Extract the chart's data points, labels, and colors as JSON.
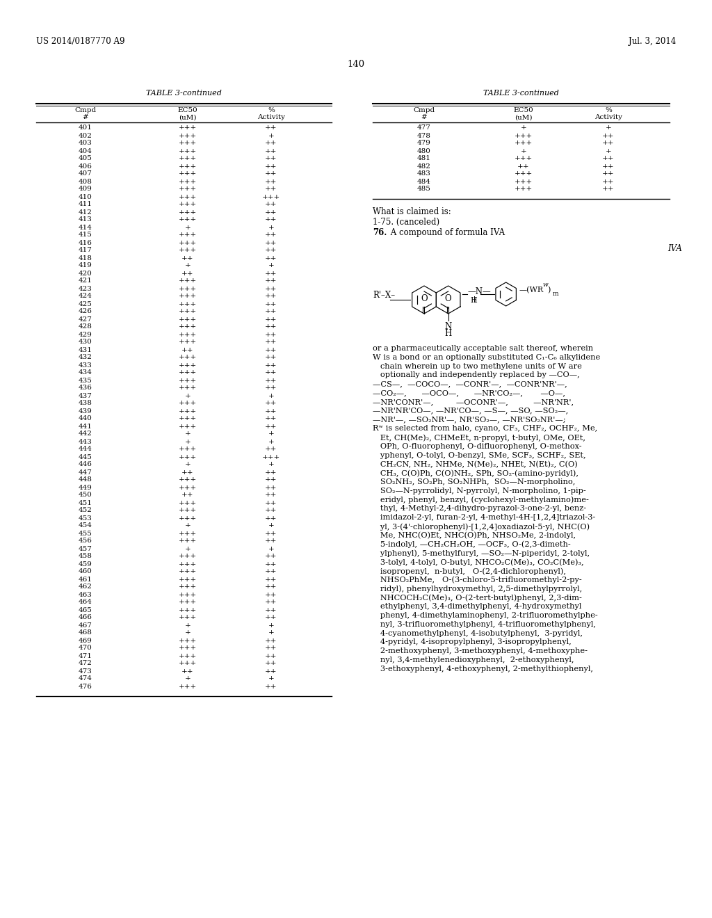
{
  "header_left": "US 2014/0187770 A9",
  "header_right": "Jul. 3, 2014",
  "page_number": "140",
  "table_title": "TABLE 3-continued",
  "left_table_data": [
    [
      "401",
      "+++",
      "++"
    ],
    [
      "402",
      "+++",
      "+"
    ],
    [
      "403",
      "+++",
      "++"
    ],
    [
      "404",
      "+++",
      "++"
    ],
    [
      "405",
      "+++",
      "++"
    ],
    [
      "406",
      "+++",
      "++"
    ],
    [
      "407",
      "+++",
      "++"
    ],
    [
      "408",
      "+++",
      "++"
    ],
    [
      "409",
      "+++",
      "++"
    ],
    [
      "410",
      "+++",
      "+++"
    ],
    [
      "411",
      "+++",
      "++"
    ],
    [
      "412",
      "+++",
      "++"
    ],
    [
      "413",
      "+++",
      "++"
    ],
    [
      "414",
      "+",
      "+"
    ],
    [
      "415",
      "+++",
      "++"
    ],
    [
      "416",
      "+++",
      "++"
    ],
    [
      "417",
      "+++",
      "++"
    ],
    [
      "418",
      "++",
      "++"
    ],
    [
      "419",
      "+",
      "+"
    ],
    [
      "420",
      "++",
      "++"
    ],
    [
      "421",
      "+++",
      "++"
    ],
    [
      "423",
      "+++",
      "++"
    ],
    [
      "424",
      "+++",
      "++"
    ],
    [
      "425",
      "+++",
      "++"
    ],
    [
      "426",
      "+++",
      "++"
    ],
    [
      "427",
      "+++",
      "++"
    ],
    [
      "428",
      "+++",
      "++"
    ],
    [
      "429",
      "+++",
      "++"
    ],
    [
      "430",
      "+++",
      "++"
    ],
    [
      "431",
      "++",
      "++"
    ],
    [
      "432",
      "+++",
      "++"
    ],
    [
      "433",
      "+++",
      "++"
    ],
    [
      "434",
      "+++",
      "++"
    ],
    [
      "435",
      "+++",
      "++"
    ],
    [
      "436",
      "+++",
      "++"
    ],
    [
      "437",
      "+",
      "+"
    ],
    [
      "438",
      "+++",
      "++"
    ],
    [
      "439",
      "+++",
      "++"
    ],
    [
      "440",
      "+++",
      "++"
    ],
    [
      "441",
      "+++",
      "++"
    ],
    [
      "442",
      "+",
      "+"
    ],
    [
      "443",
      "+",
      "+"
    ],
    [
      "444",
      "+++",
      "++"
    ],
    [
      "445",
      "+++",
      "+++"
    ],
    [
      "446",
      "+",
      "+"
    ],
    [
      "447",
      "++",
      "++"
    ],
    [
      "448",
      "+++",
      "++"
    ],
    [
      "449",
      "+++",
      "++"
    ],
    [
      "450",
      "++",
      "++"
    ],
    [
      "451",
      "+++",
      "++"
    ],
    [
      "452",
      "+++",
      "++"
    ],
    [
      "453",
      "+++",
      "++"
    ],
    [
      "454",
      "+",
      "+"
    ],
    [
      "455",
      "+++",
      "++"
    ],
    [
      "456",
      "+++",
      "++"
    ],
    [
      "457",
      "+",
      "+"
    ],
    [
      "458",
      "+++",
      "++"
    ],
    [
      "459",
      "+++",
      "++"
    ],
    [
      "460",
      "+++",
      "++"
    ],
    [
      "461",
      "+++",
      "++"
    ],
    [
      "462",
      "+++",
      "++"
    ],
    [
      "463",
      "+++",
      "++"
    ],
    [
      "464",
      "+++",
      "++"
    ],
    [
      "465",
      "+++",
      "++"
    ],
    [
      "466",
      "+++",
      "++"
    ],
    [
      "467",
      "+",
      "+"
    ],
    [
      "468",
      "+",
      "+"
    ],
    [
      "469",
      "+++",
      "++"
    ],
    [
      "470",
      "+++",
      "++"
    ],
    [
      "471",
      "+++",
      "++"
    ],
    [
      "472",
      "+++",
      "++"
    ],
    [
      "473",
      "++",
      "++"
    ],
    [
      "474",
      "+",
      "+"
    ],
    [
      "476",
      "+++",
      "++"
    ]
  ],
  "right_table_data": [
    [
      "477",
      "+",
      "+"
    ],
    [
      "478",
      "+++",
      "++"
    ],
    [
      "479",
      "+++",
      "++"
    ],
    [
      "480",
      "+",
      "+"
    ],
    [
      "481",
      "+++",
      "++"
    ],
    [
      "482",
      "++",
      "++"
    ],
    [
      "483",
      "+++",
      "++"
    ],
    [
      "484",
      "+++",
      "++"
    ],
    [
      "485",
      "+++",
      "++"
    ]
  ],
  "body_text_lines": [
    "or a pharmaceutically acceptable salt thereof, wherein",
    "W is a bond or an optionally substituted C₁-C₆ alkylidene",
    "   chain wherein up to two methylene units of W are",
    "   optionally and independently replaced by —CO—,",
    "—CS—,  —COCO—,  —CONR'—,  —CONR'NR'—,",
    "—CO₂—,      —OCO—,      —NR'CO₂—,       —O—,",
    "—NR'CONR'—,         —OCONR'—,          —NR'NR',",
    "—NR'NR'CO—, —NR'CO—, —S—, —SO, —SO₂—,",
    "—NR'—, —SO₂NR'—, NR'SO₂—, —NR'SO₂NR'—;",
    "Rʷ is selected from halo, cyano, CF₃, CHF₂, OCHF₂, Me,",
    "   Et, CH(Me)₂, CHMeEt, n-propyl, t-butyl, OMe, OEt,",
    "   OPh, O-fluorophenyl, O-difluorophenyl, O-methox-",
    "   yphenyl, O-tolyl, O-benzyl, SMe, SCF₃, SCHF₂, SEt,",
    "   CH₂CN, NH₂, NHMe, N(Me)₂, NHEt, N(Et)₂, C(O)",
    "   CH₃, C(O)Ph, C(O)NH₂, SPh, SO₂-(amino-pyridyl),",
    "   SO₂NH₂, SO₂Ph, SO₂NHPh,  SO₂—N-morpholino,",
    "   SO₂—N-pyrrolidyl, N-pyrrolyl, N-morpholino, 1-pip-",
    "   eridyl, phenyl, benzyl, (cyclohexyl-methylamino)me-",
    "   thyl, 4-Methyl-2,4-dihydro-pyrazol-3-one-2-yl, benz-",
    "   imidazol-2-yl, furan-2-yl, 4-methyl-4H-[1,2,4]triazol-3-",
    "   yl, 3-(4'-chlorophenyl)-[1,2,4]oxadiazol-5-yl, NHC(O)",
    "   Me, NHC(O)Et, NHC(O)Ph, NHSO₂Me, 2-indolyl,",
    "   5-indolyl, —CH₂CH₂OH, —OCF₃, O-(2,3-dimeth-",
    "   ylphenyl), 5-methylfuryl, —SO₂—N-piperidyl, 2-tolyl,",
    "   3-tolyl, 4-tolyl, O-butyl, NHCO₂C(Me)₃, CO₂C(Me)₃,",
    "   isopropenyl,  n-butyl,   O-(2,4-dichlorophenyl),",
    "   NHSO₂PhMe,   O-(3-chloro-5-trifluoromethyl-2-py-",
    "   ridyl), phenylhydroxymethyl, 2,5-dimethylpyrrolyl,",
    "   NHCOCH₂C(Me)₃, O-(2-tert-butyl)phenyl, 2,3-dim-",
    "   ethylphenyl, 3,4-dimethylphenyl, 4-hydroxymethyl",
    "   phenyl, 4-dimethylaminophenyl, 2-trifluoromethylphe-",
    "   nyl, 3-trifluoromethylphenyl, 4-trifluoromethylphenyl,",
    "   4-cyanomethylphenyl, 4-isobutylphenyl,  3-pyridyl,",
    "   4-pyridyl, 4-isopropylphenyl, 3-isopropylphenyl,",
    "   2-methoxyphenyl, 3-methoxyphenyl, 4-methoxyphe-",
    "   nyl, 3,4-methylenedioxyphenyl,  2-ethoxyphenyl,",
    "   3-ethoxyphenyl, 4-ethoxyphenyl, 2-methylthiophenyl,"
  ]
}
